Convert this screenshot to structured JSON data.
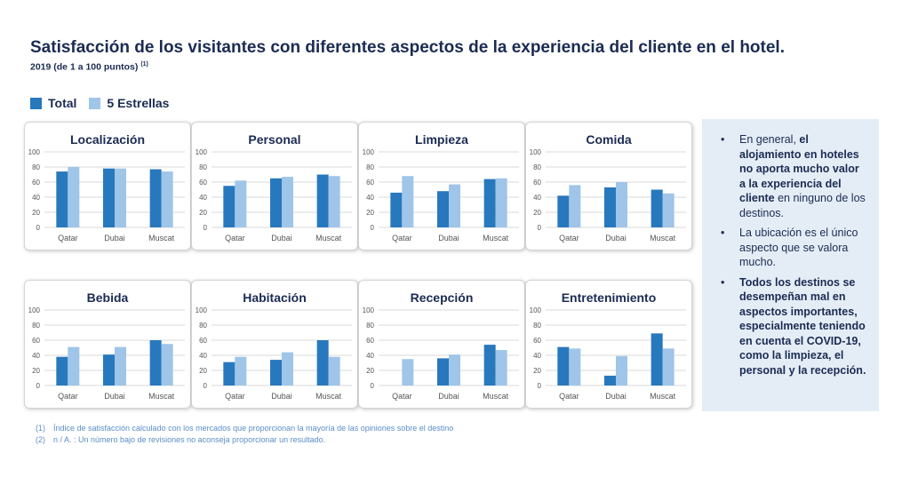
{
  "header": {
    "title": "Satisfacción de los visitantes con diferentes aspectos de la experiencia del cliente en el hotel.",
    "subtitle": "2019 (de 1 a 100 puntos)",
    "subtitle_note": "(1)"
  },
  "colors": {
    "total": "#2878bd",
    "five_star": "#9fc5e8",
    "grid": "#d9d9d9",
    "text": "#1b2b52"
  },
  "legend": [
    {
      "label": "Total",
      "color": "#2878bd"
    },
    {
      "label": "5 Estrellas",
      "color": "#9fc5e8"
    }
  ],
  "chart_data": [
    {
      "type": "bar",
      "title": "Localización",
      "categories": [
        "Qatar",
        "Dubai",
        "Muscat"
      ],
      "ylim": [
        0,
        100
      ],
      "yticks": [
        0,
        20,
        40,
        60,
        80,
        100
      ],
      "series": [
        {
          "name": "Total",
          "values": [
            74,
            78,
            77
          ]
        },
        {
          "name": "5 Estrellas",
          "values": [
            80,
            78,
            74
          ]
        }
      ]
    },
    {
      "type": "bar",
      "title": "Personal",
      "categories": [
        "Qatar",
        "Dubai",
        "Muscat"
      ],
      "ylim": [
        0,
        100
      ],
      "yticks": [
        0,
        20,
        40,
        60,
        80,
        100
      ],
      "series": [
        {
          "name": "Total",
          "values": [
            55,
            65,
            70
          ]
        },
        {
          "name": "5 Estrellas",
          "values": [
            62,
            67,
            68
          ]
        }
      ]
    },
    {
      "type": "bar",
      "title": "Limpieza",
      "categories": [
        "Qatar",
        "Dubai",
        "Muscat"
      ],
      "ylim": [
        0,
        100
      ],
      "yticks": [
        0,
        20,
        40,
        60,
        80,
        100
      ],
      "series": [
        {
          "name": "Total",
          "values": [
            46,
            48,
            64
          ]
        },
        {
          "name": "5 Estrellas",
          "values": [
            68,
            57,
            65
          ]
        }
      ]
    },
    {
      "type": "bar",
      "title": "Comida",
      "categories": [
        "Qatar",
        "Dubai",
        "Muscat"
      ],
      "ylim": [
        0,
        100
      ],
      "yticks": [
        0,
        20,
        40,
        60,
        80,
        100
      ],
      "series": [
        {
          "name": "Total",
          "values": [
            42,
            53,
            50
          ]
        },
        {
          "name": "5 Estrellas",
          "values": [
            56,
            60,
            45
          ]
        }
      ]
    },
    {
      "type": "bar",
      "title": "Bebida",
      "categories": [
        "Qatar",
        "Dubai",
        "Muscat"
      ],
      "ylim": [
        0,
        100
      ],
      "yticks": [
        0,
        20,
        40,
        60,
        80,
        100
      ],
      "series": [
        {
          "name": "Total",
          "values": [
            38,
            41,
            60
          ]
        },
        {
          "name": "5 Estrellas",
          "values": [
            51,
            51,
            55
          ]
        }
      ]
    },
    {
      "type": "bar",
      "title": "Habitación",
      "categories": [
        "Qatar",
        "Dubai",
        "Muscat"
      ],
      "ylim": [
        0,
        100
      ],
      "yticks": [
        0,
        20,
        40,
        60,
        80,
        100
      ],
      "series": [
        {
          "name": "Total",
          "values": [
            31,
            34,
            60
          ]
        },
        {
          "name": "5 Estrellas",
          "values": [
            38,
            44,
            38
          ]
        }
      ]
    },
    {
      "type": "bar",
      "title": "Recepción",
      "categories": [
        "Qatar",
        "Dubai",
        "Muscat"
      ],
      "ylim": [
        0,
        100
      ],
      "yticks": [
        0,
        20,
        40,
        60,
        80,
        100
      ],
      "series": [
        {
          "name": "Total",
          "values": [
            null,
            36,
            54
          ]
        },
        {
          "name": "5 Estrellas",
          "values": [
            35,
            41,
            47
          ]
        }
      ]
    },
    {
      "type": "bar",
      "title": "Entretenimiento",
      "categories": [
        "Qatar",
        "Dubai",
        "Muscat"
      ],
      "ylim": [
        0,
        100
      ],
      "yticks": [
        0,
        20,
        40,
        60,
        80,
        100
      ],
      "series": [
        {
          "name": "Total",
          "values": [
            51,
            13,
            69
          ]
        },
        {
          "name": "5 Estrellas",
          "values": [
            49,
            39,
            49
          ]
        }
      ]
    }
  ],
  "notes": [
    {
      "parts": [
        {
          "text": "En general, ",
          "bold": false
        },
        {
          "text": "el alojamiento en hoteles no aporta mucho valor a la experiencia del cliente",
          "bold": true
        },
        {
          "text": " en ninguno de los destinos.",
          "bold": false
        }
      ]
    },
    {
      "parts": [
        {
          "text": "La ubicación es el único aspecto que se valora mucho.",
          "bold": false
        }
      ]
    },
    {
      "parts": [
        {
          "text": "Todos los destinos se desempeñan mal en aspectos importantes, especialmente teniendo en cuenta el COVID-19, como la limpieza, el personal y la recepción.",
          "bold": true
        }
      ]
    }
  ],
  "bullet": "•",
  "footnotes": [
    {
      "num": "(1)",
      "text": "Índice de satisfacción calculado con los mercados que proporcionan la mayoría de las opiniones sobre el destino"
    },
    {
      "num": "(2)",
      "text": "n / A. : Un número bajo de revisiones no aconseja proporcionar un resultado."
    }
  ]
}
